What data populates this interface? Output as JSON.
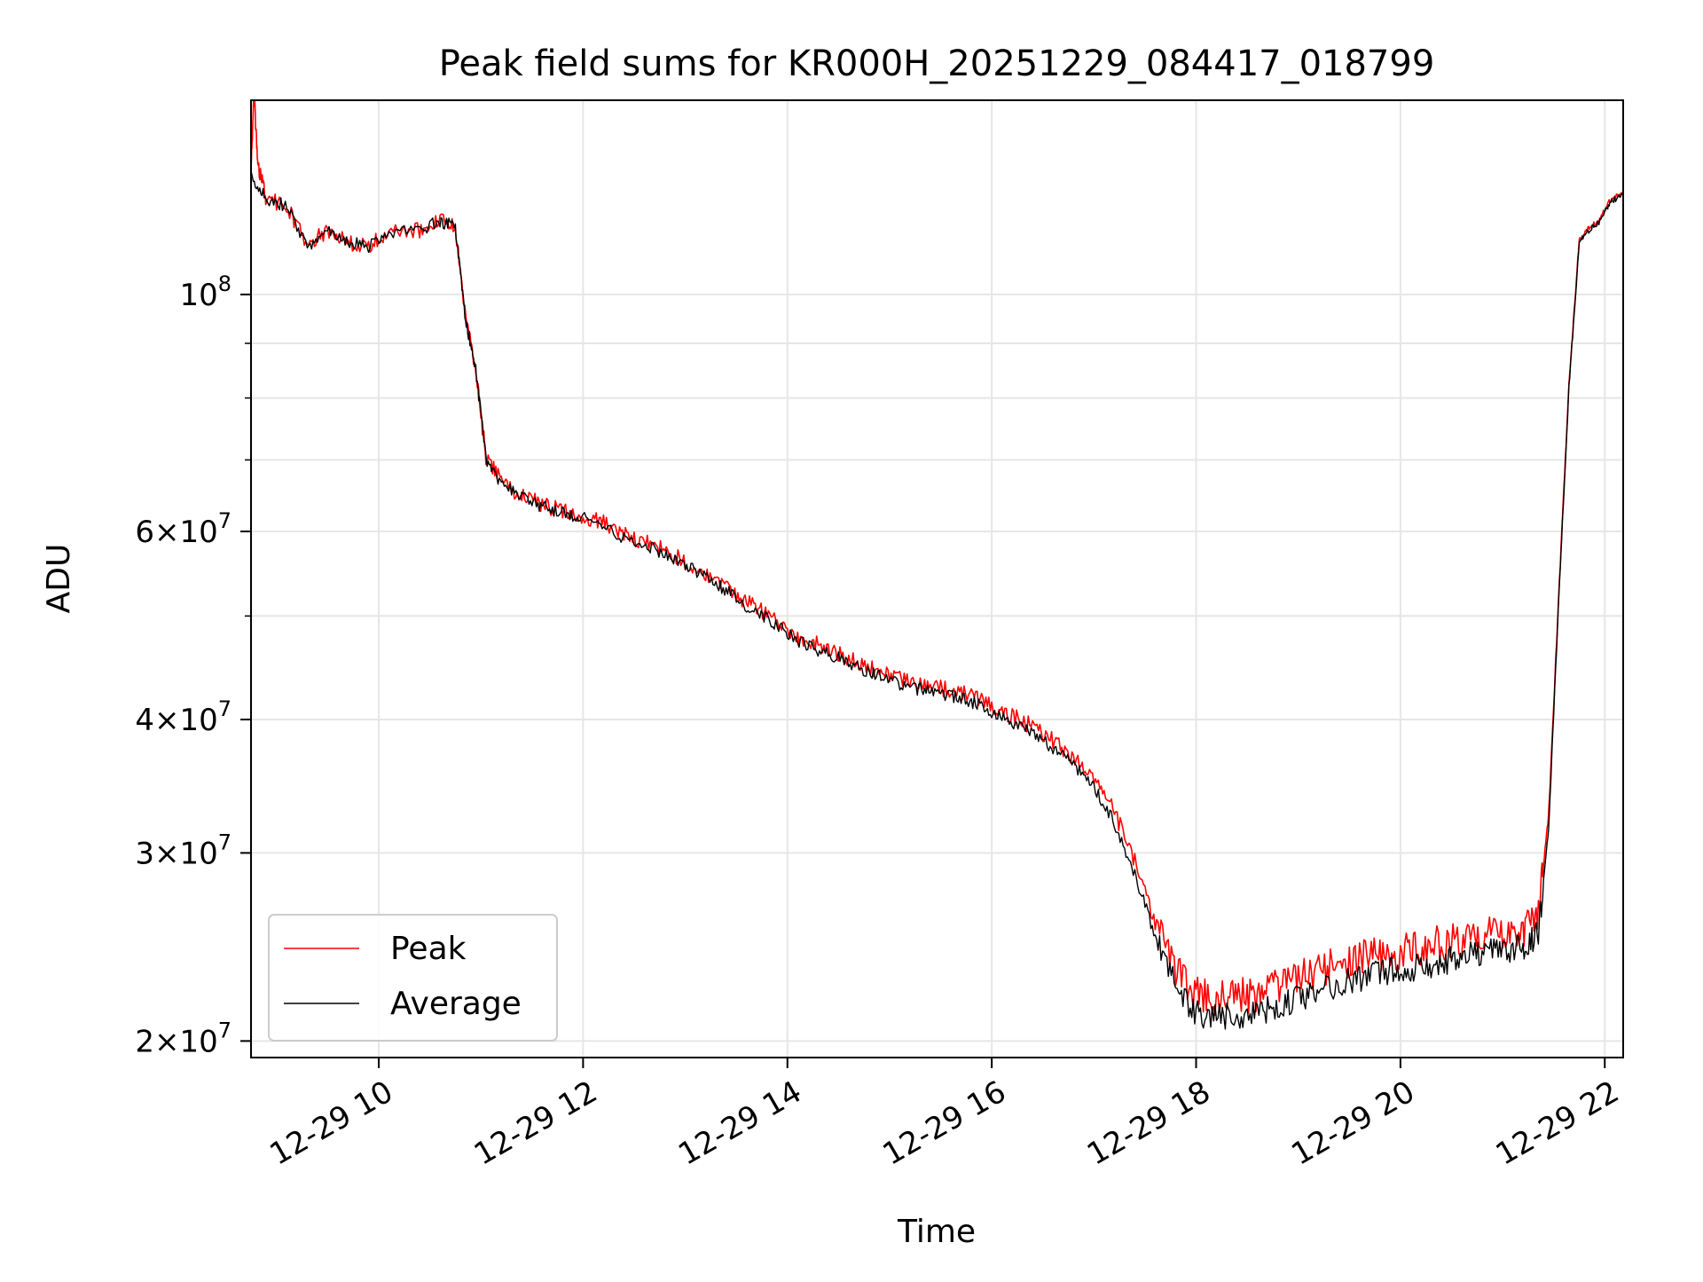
{
  "chart_data": {
    "type": "line",
    "title": "Peak field sums for KR000H_20251229_084417_018799",
    "xlabel": "Time",
    "ylabel": "ADU",
    "yscale": "log",
    "xlim": [
      8.75,
      22.18
    ],
    "ylim": [
      19300000,
      152000000
    ],
    "grid": true,
    "x_unit": "hours on 12-29",
    "x_ticks": [
      {
        "value": 10,
        "label": "12-29 10"
      },
      {
        "value": 12,
        "label": "12-29 12"
      },
      {
        "value": 14,
        "label": "12-29 14"
      },
      {
        "value": 16,
        "label": "12-29 16"
      },
      {
        "value": 18,
        "label": "12-29 18"
      },
      {
        "value": 20,
        "label": "12-29 20"
      },
      {
        "value": 22,
        "label": "12-29 22"
      }
    ],
    "y_major_ticks": [
      {
        "value": 20000000,
        "mantissa": "2",
        "base": "10",
        "exp": "7"
      },
      {
        "value": 30000000,
        "mantissa": "3",
        "base": "10",
        "exp": "7"
      },
      {
        "value": 40000000,
        "mantissa": "4",
        "base": "10",
        "exp": "7"
      },
      {
        "value": 60000000,
        "mantissa": "6",
        "base": "10",
        "exp": "7"
      },
      {
        "value": 100000000,
        "mantissa": "",
        "base": "10",
        "exp": "8"
      }
    ],
    "y_minor_ticks": [
      50000000,
      70000000,
      80000000,
      90000000
    ],
    "legend": {
      "position": "lower-left",
      "entries": [
        "Peak",
        "Average"
      ]
    },
    "series": [
      {
        "name": "Average",
        "color": "#000000",
        "points": [
          [
            8.75,
            129000000
          ],
          [
            8.9,
            123000000
          ],
          [
            9.1,
            121000000
          ],
          [
            9.3,
            111000000
          ],
          [
            9.5,
            115000000
          ],
          [
            9.7,
            112000000
          ],
          [
            9.9,
            111000000
          ],
          [
            10.1,
            114000000
          ],
          [
            10.4,
            115000000
          ],
          [
            10.6,
            117000000
          ],
          [
            10.75,
            116000000
          ],
          [
            10.85,
            95000000
          ],
          [
            10.95,
            85000000
          ],
          [
            11.05,
            70000000
          ],
          [
            11.2,
            66500000
          ],
          [
            11.4,
            64500000
          ],
          [
            11.6,
            63300000
          ],
          [
            11.8,
            62400000
          ],
          [
            12.0,
            61700000
          ],
          [
            12.2,
            60800000
          ],
          [
            12.4,
            59200000
          ],
          [
            12.6,
            58300000
          ],
          [
            12.8,
            57200000
          ],
          [
            13.0,
            55800000
          ],
          [
            13.2,
            54500000
          ],
          [
            13.4,
            52800000
          ],
          [
            13.6,
            51100000
          ],
          [
            13.8,
            49800000
          ],
          [
            14.0,
            48200000
          ],
          [
            14.2,
            46800000
          ],
          [
            14.4,
            46200000
          ],
          [
            14.6,
            45200000
          ],
          [
            14.8,
            44300000
          ],
          [
            15.0,
            43500000
          ],
          [
            15.2,
            42900000
          ],
          [
            15.4,
            42500000
          ],
          [
            15.6,
            42100000
          ],
          [
            15.8,
            41600000
          ],
          [
            16.0,
            40600000
          ],
          [
            16.2,
            39700000
          ],
          [
            16.4,
            38800000
          ],
          [
            16.6,
            37600000
          ],
          [
            16.8,
            36200000
          ],
          [
            17.0,
            34600000
          ],
          [
            17.2,
            32000000
          ],
          [
            17.4,
            28700000
          ],
          [
            17.6,
            25000000
          ],
          [
            17.8,
            22600000
          ],
          [
            18.0,
            21200000
          ],
          [
            18.2,
            21100000
          ],
          [
            18.4,
            21100000
          ],
          [
            18.6,
            21300000
          ],
          [
            18.8,
            21600000
          ],
          [
            19.0,
            21900000
          ],
          [
            19.2,
            22300000
          ],
          [
            19.4,
            22600000
          ],
          [
            19.6,
            22900000
          ],
          [
            19.8,
            23200000
          ],
          [
            20.0,
            23300000
          ],
          [
            20.2,
            23500000
          ],
          [
            20.4,
            23700000
          ],
          [
            20.6,
            24000000
          ],
          [
            20.8,
            24200000
          ],
          [
            21.0,
            24300000
          ],
          [
            21.2,
            24500000
          ],
          [
            21.35,
            25200000
          ],
          [
            21.45,
            31500000
          ],
          [
            21.55,
            52000000
          ],
          [
            21.65,
            82000000
          ],
          [
            21.75,
            112000000
          ],
          [
            21.85,
            115000000
          ],
          [
            21.95,
            117000000
          ],
          [
            22.05,
            122000000
          ],
          [
            22.18,
            124000000
          ]
        ]
      },
      {
        "name": "Peak",
        "color": "#ff0000",
        "points": [
          [
            8.75,
            131000000
          ],
          [
            8.78,
            154000000
          ],
          [
            8.82,
            132000000
          ],
          [
            8.9,
            123000000
          ],
          [
            9.1,
            121000000
          ],
          [
            9.3,
            111000000
          ],
          [
            9.5,
            115000000
          ],
          [
            9.7,
            112000000
          ],
          [
            9.9,
            111000000
          ],
          [
            10.1,
            114000000
          ],
          [
            10.4,
            115000000
          ],
          [
            10.6,
            117000000
          ],
          [
            10.75,
            116000000
          ],
          [
            10.85,
            95000000
          ],
          [
            10.95,
            85000000
          ],
          [
            11.05,
            70300000
          ],
          [
            11.2,
            66800000
          ],
          [
            11.4,
            64800000
          ],
          [
            11.6,
            63600000
          ],
          [
            11.8,
            62700000
          ],
          [
            12.0,
            62000000
          ],
          [
            12.2,
            61200000
          ],
          [
            12.4,
            59600000
          ],
          [
            12.6,
            58700000
          ],
          [
            12.8,
            57600000
          ],
          [
            13.0,
            56200000
          ],
          [
            13.2,
            54900000
          ],
          [
            13.4,
            53200000
          ],
          [
            13.6,
            51500000
          ],
          [
            13.8,
            50200000
          ],
          [
            14.0,
            48600000
          ],
          [
            14.2,
            47300000
          ],
          [
            14.4,
            46700000
          ],
          [
            14.6,
            45700000
          ],
          [
            14.8,
            44800000
          ],
          [
            15.0,
            44000000
          ],
          [
            15.2,
            43400000
          ],
          [
            15.4,
            43000000
          ],
          [
            15.6,
            42600000
          ],
          [
            15.8,
            42100000
          ],
          [
            16.0,
            41200000
          ],
          [
            16.2,
            40300000
          ],
          [
            16.4,
            39400000
          ],
          [
            16.6,
            38200000
          ],
          [
            16.8,
            36800000
          ],
          [
            17.0,
            35200000
          ],
          [
            17.2,
            32800000
          ],
          [
            17.4,
            29500000
          ],
          [
            17.6,
            25800000
          ],
          [
            17.8,
            23400000
          ],
          [
            18.0,
            22100000
          ],
          [
            18.2,
            22000000
          ],
          [
            18.4,
            22000000
          ],
          [
            18.6,
            22200000
          ],
          [
            18.8,
            22500000
          ],
          [
            19.0,
            22900000
          ],
          [
            19.2,
            23300000
          ],
          [
            19.4,
            23600000
          ],
          [
            19.6,
            23900000
          ],
          [
            19.8,
            24200000
          ],
          [
            20.0,
            24300000
          ],
          [
            20.2,
            24500000
          ],
          [
            20.4,
            24700000
          ],
          [
            20.6,
            25000000
          ],
          [
            20.8,
            25200000
          ],
          [
            21.0,
            25300000
          ],
          [
            21.2,
            25500000
          ],
          [
            21.35,
            26300000
          ],
          [
            21.45,
            32500000
          ],
          [
            21.55,
            52500000
          ],
          [
            21.65,
            82500000
          ],
          [
            21.75,
            112500000
          ],
          [
            21.85,
            115500000
          ],
          [
            21.95,
            117500000
          ],
          [
            22.05,
            122500000
          ],
          [
            22.18,
            124500000
          ]
        ]
      }
    ]
  }
}
